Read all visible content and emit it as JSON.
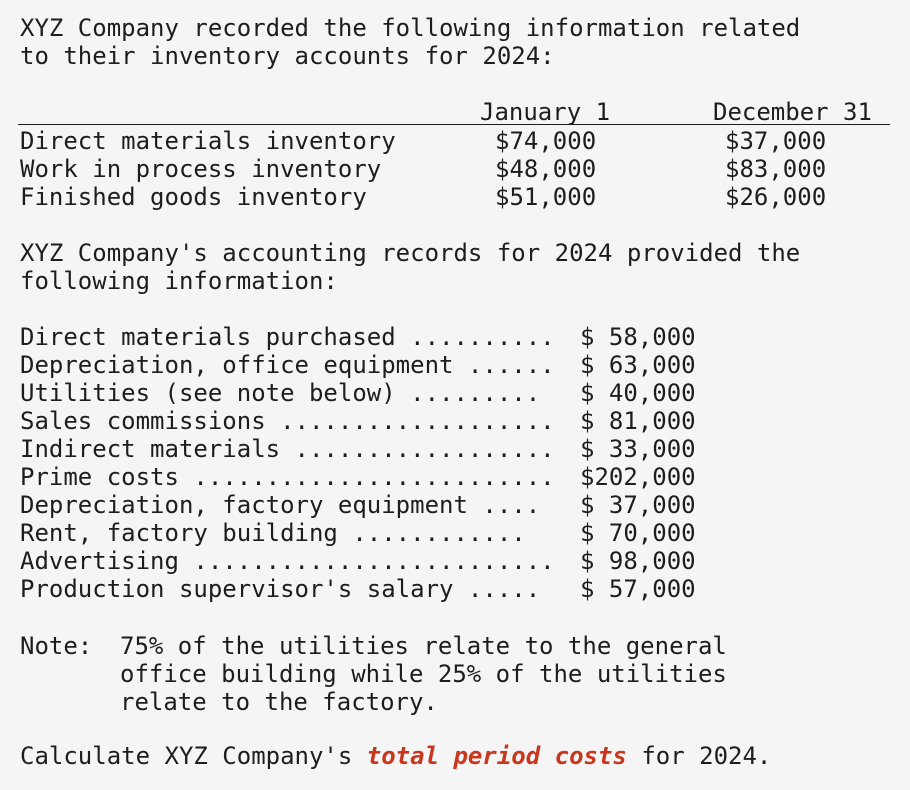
{
  "intro": {
    "line1": "XYZ Company recorded the following information related",
    "line2": "to their inventory accounts for 2024:"
  },
  "inventory_table": {
    "headers": [
      "January 1",
      "December 31"
    ],
    "rows": [
      {
        "label": "Direct materials inventory",
        "jan": "$74,000",
        "dec": "$37,000"
      },
      {
        "label": "Work in process inventory",
        "jan": "$48,000",
        "dec": "$83,000"
      },
      {
        "label": "Finished goods inventory",
        "jan": "$51,000",
        "dec": "$26,000"
      }
    ]
  },
  "records_intro": {
    "line1": "XYZ Company's accounting records for 2024 provided the",
    "line2": "following information:"
  },
  "costs": [
    {
      "label": "Direct materials purchased ..........",
      "value": "$ 58,000"
    },
    {
      "label": "Depreciation, office equipment ......",
      "value": "$ 63,000"
    },
    {
      "label": "Utilities (see note below) .........",
      "value": "$ 40,000"
    },
    {
      "label": "Sales commissions ...................",
      "value": "$ 81,000"
    },
    {
      "label": "Indirect materials ..................",
      "value": "$ 33,000"
    },
    {
      "label": "Prime costs .........................",
      "value": "$202,000"
    },
    {
      "label": "Depreciation, factory equipment ....",
      "value": "$ 37,000"
    },
    {
      "label": "Rent, factory building ............",
      "value": "$ 70,000"
    },
    {
      "label": "Advertising .........................",
      "value": "$ 98,000"
    },
    {
      "label": "Production supervisor's salary .....",
      "value": "$ 57,000"
    }
  ],
  "note": {
    "label": "Note:",
    "line1": "75% of the utilities relate to the general",
    "line2": "office building while 25% of the utilities",
    "line3": "relate to the factory."
  },
  "question": {
    "prefix": "Calculate XYZ Company's ",
    "emphasis": "total period costs",
    "suffix": " for 2024."
  }
}
